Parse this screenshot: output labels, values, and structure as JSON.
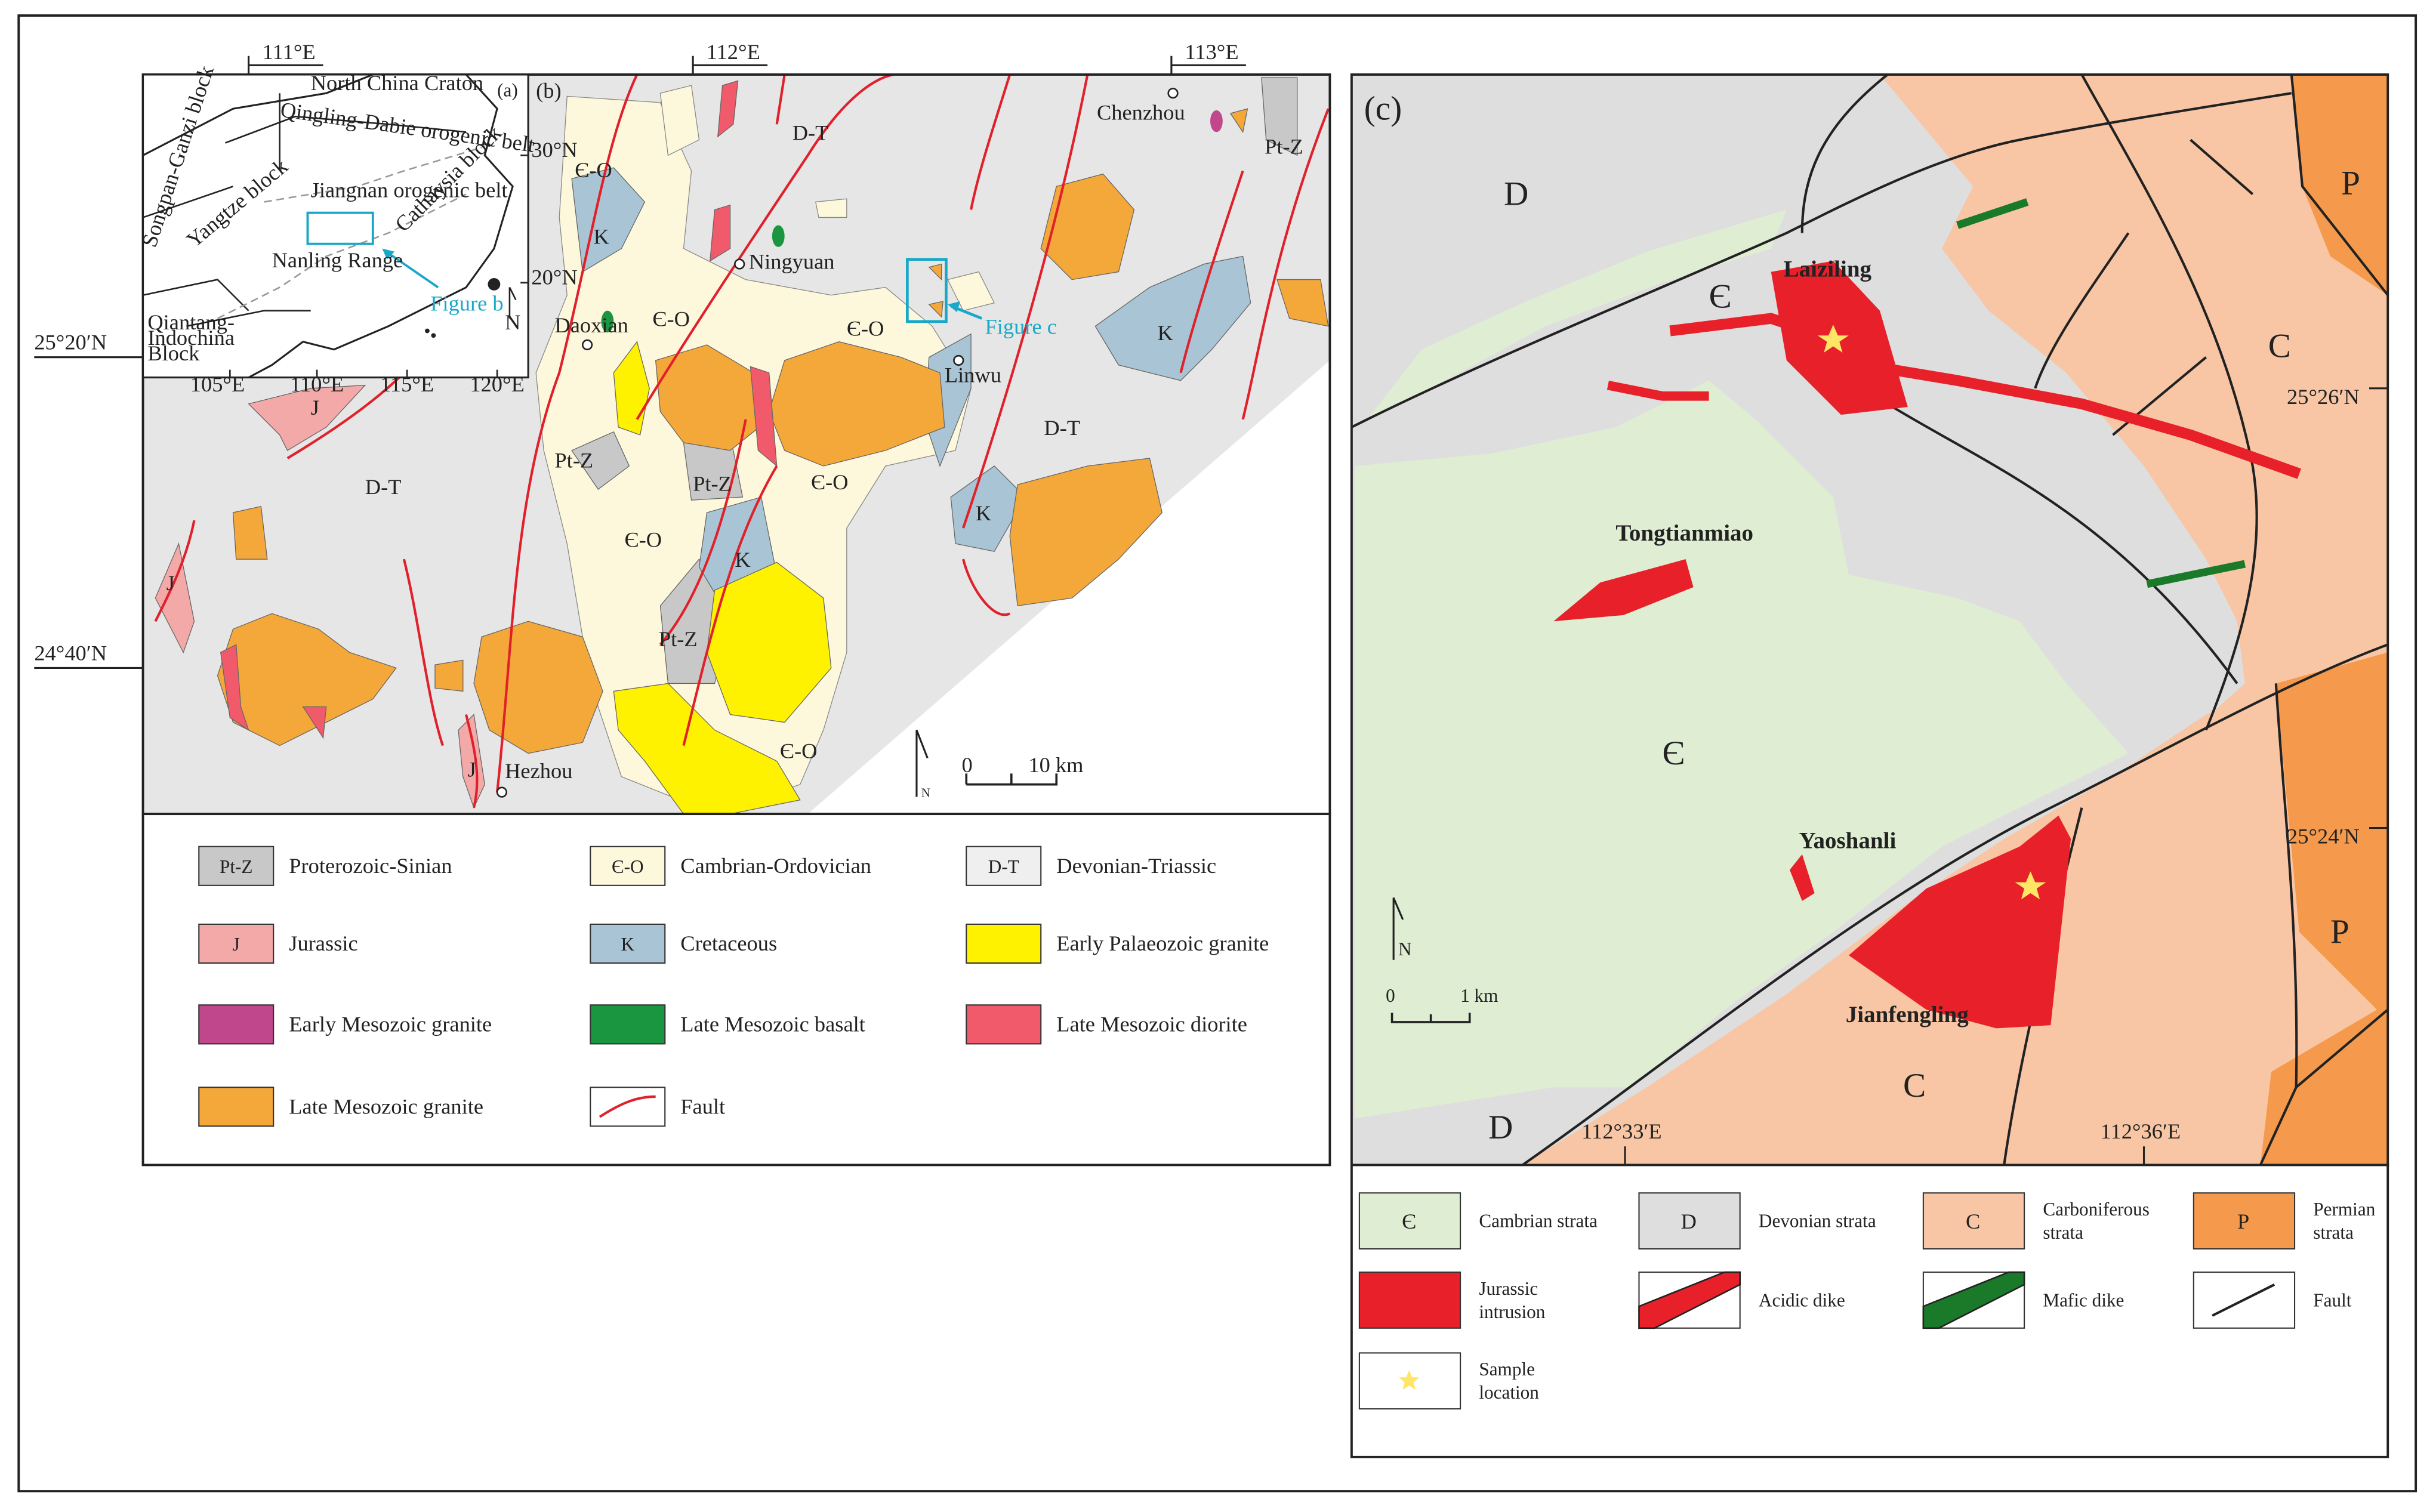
{
  "panel_a": {
    "tag": "(a)",
    "labels": [
      "North China Craton",
      "Qingling-Dabie orogenic belt",
      "Songpan-Ganzi block",
      "Yangtze block",
      "Jiangnan orogenic belt",
      "Cathaysia block",
      "Nanling Range",
      "Figure b",
      "Qiantang-",
      "Indochina",
      "Block",
      "30°N",
      "20°N",
      "N"
    ],
    "xticks": [
      "105°E",
      "110°E",
      "115°E",
      "120°E"
    ]
  },
  "panel_b": {
    "tag": "(b)",
    "xticks": [
      "111°E",
      "112°E",
      "113°E"
    ],
    "yticks": [
      "25°20′N",
      "24°40′N"
    ],
    "units": [
      "D-T",
      "D-T",
      "D-T",
      "Є-O",
      "Є-O",
      "Є-O",
      "Є-O",
      "Є-O",
      "Є-O",
      "K",
      "K",
      "K",
      "K",
      "Pt-Z",
      "Pt-Z",
      "Pt-Z",
      "Pt-Z",
      "J",
      "J",
      "J"
    ],
    "towns": [
      "Chenzhou",
      "Ningyuan",
      "Daoxian",
      "Linwu",
      "Hezhou"
    ],
    "inset_ref": "Figure c",
    "scale": [
      "0",
      "10 km"
    ],
    "north": "N"
  },
  "legend_b": {
    "items": [
      {
        "code": "Pt-Z",
        "label": "Proterozoic-Sinian"
      },
      {
        "code": "Є-O",
        "label": "Cambrian-Ordovician"
      },
      {
        "code": "D-T",
        "label": "Devonian-Triassic"
      },
      {
        "code": "J",
        "label": "Jurassic"
      },
      {
        "code": "K",
        "label": "Cretaceous"
      },
      {
        "label": "Early Palaeozoic granite"
      },
      {
        "label": "Early Mesozoic granite"
      },
      {
        "label": "Late Mesozoic basalt"
      },
      {
        "label": "Late Mesozoic diorite"
      },
      {
        "label": "Late Mesozoic granite"
      },
      {
        "label": "Fault"
      }
    ]
  },
  "panel_c": {
    "tag": "(c)",
    "units": [
      "D",
      "Є",
      "Є",
      "C",
      "D",
      "C",
      "P",
      "P"
    ],
    "sites": [
      "Laiziling",
      "Tongtianmiao",
      "Yaoshanli",
      "Jianfengling"
    ],
    "yticks": [
      "25°26′N",
      "25°24′N"
    ],
    "xticks": [
      "112°33′E",
      "112°36′E"
    ],
    "scale": [
      "0",
      "1 km"
    ],
    "north": "N"
  },
  "legend_c": {
    "items": [
      {
        "code": "Є",
        "label": [
          "Cambrian strata"
        ]
      },
      {
        "code": "D",
        "label": [
          "Devonian strata"
        ]
      },
      {
        "code": "C",
        "label": [
          "Carboniferous",
          "strata"
        ]
      },
      {
        "code": "P",
        "label": [
          "Permian",
          "strata"
        ]
      },
      {
        "label": [
          "Jurassic",
          "intrusion"
        ]
      },
      {
        "label": [
          "Acidic dike"
        ]
      },
      {
        "label": [
          "Mafic dike"
        ]
      },
      {
        "label": [
          "Fault"
        ]
      },
      {
        "label": [
          "Sample",
          "location"
        ]
      }
    ]
  }
}
